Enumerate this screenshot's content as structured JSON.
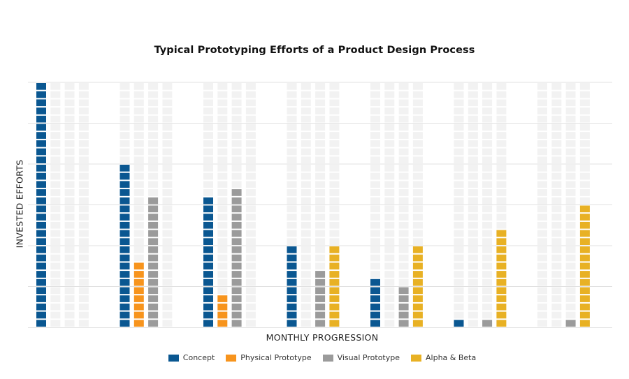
{
  "chart_data": {
    "type": "bar",
    "title": "Typical Prototyping Efforts of a Product Design Process",
    "xlabel": "MONTHLY PROGRESSION",
    "ylabel": "INVESTED EFFORTS",
    "ylim": [
      0,
      30
    ],
    "grid": true,
    "legend_position": "bottom",
    "categories": [
      "",
      "",
      "",
      "",
      "",
      "",
      ""
    ],
    "series": [
      {
        "name": "Concept",
        "color": "#0a5791",
        "values": [
          30,
          20,
          16,
          10,
          6,
          1,
          0
        ]
      },
      {
        "name": "Physical Prototype",
        "color": "#f7941d",
        "values": [
          0,
          8,
          4,
          0,
          0,
          0,
          0
        ]
      },
      {
        "name": "Visual Prototype",
        "color": "#9b9b9b",
        "values": [
          0,
          16,
          17,
          7,
          5,
          1,
          1
        ]
      },
      {
        "name": "Alpha & Beta",
        "color": "#e8b124",
        "values": [
          0,
          0,
          0,
          10,
          10,
          12,
          15
        ]
      }
    ],
    "empty_cell_color": "#f2f2f2"
  }
}
